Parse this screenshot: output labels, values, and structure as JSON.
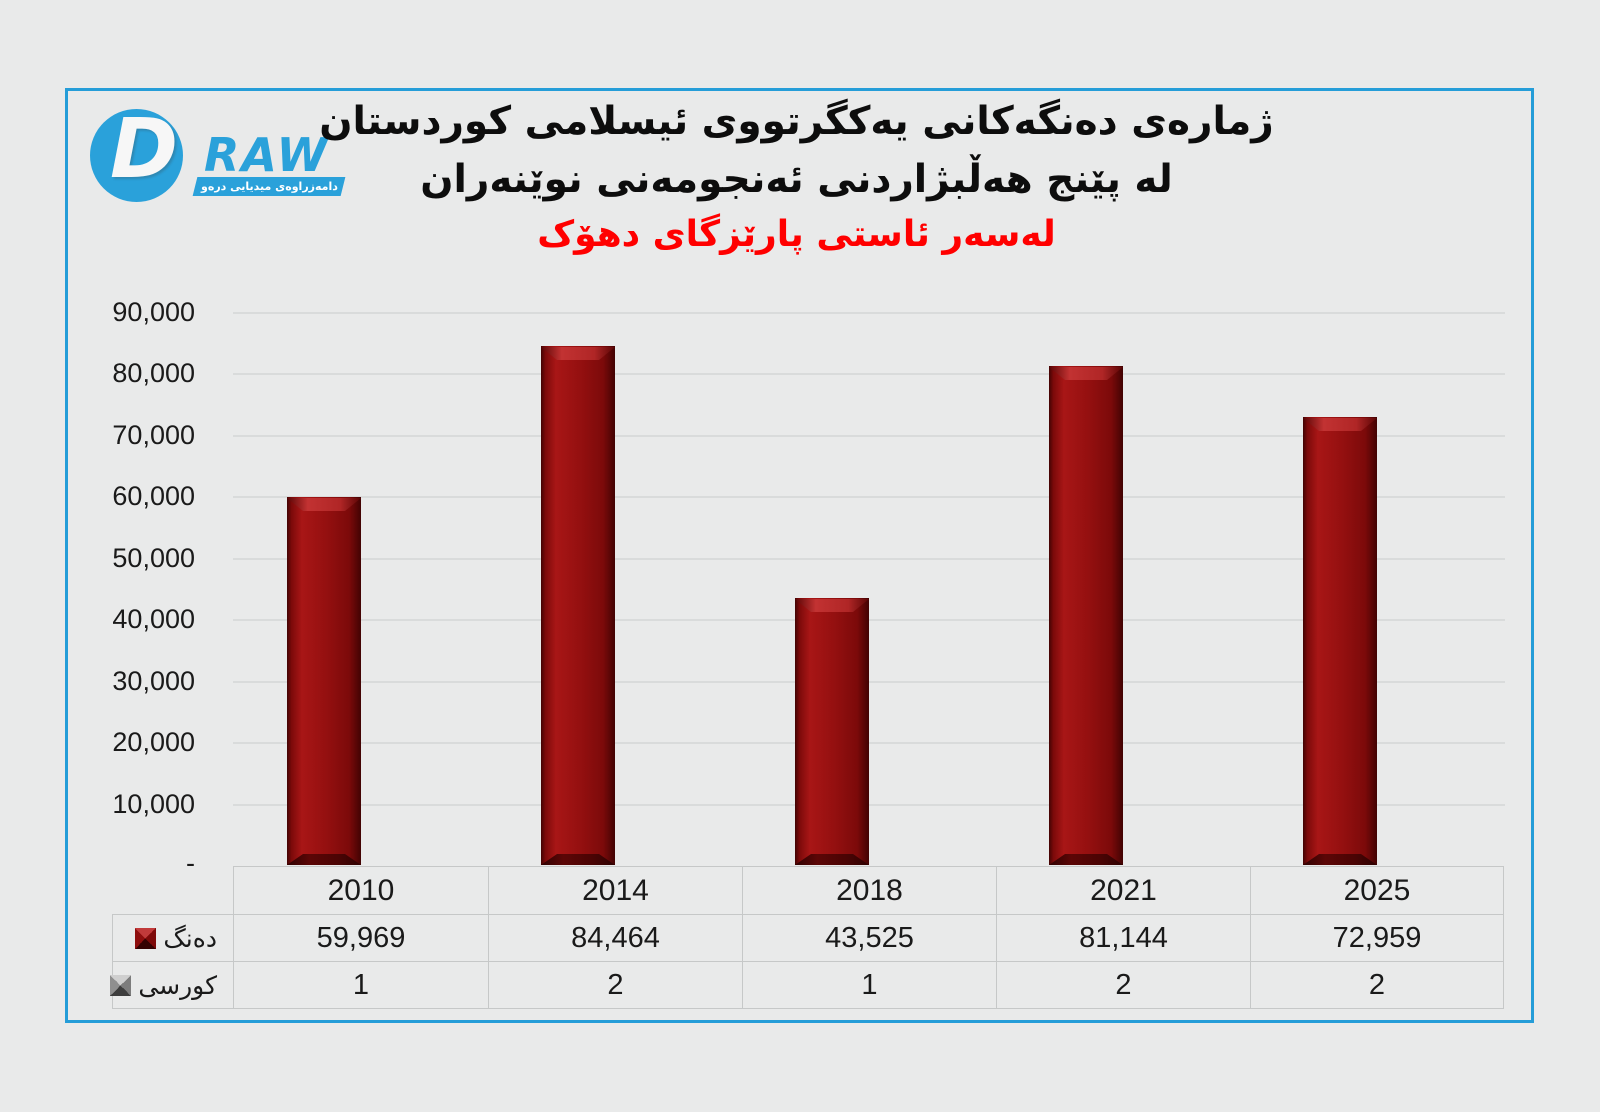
{
  "logo": {
    "brand_d": "D",
    "brand_raw": "RAW",
    "tagline": "دامەزراوەی میدیایی درەو",
    "brand_color": "#2aa1da"
  },
  "title": {
    "line1": "ژمارەی دەنگەکانی یەکگرتووی ئیسلامی کوردستان",
    "line2": "لە پێنج هەڵبژاردنی ئەنجومەنی نوێنەران",
    "line3": "لەسەر ئاستی پارێزگای دهۆک",
    "line3_color": "#ff0000"
  },
  "chart_data": {
    "type": "bar",
    "categories": [
      "2010",
      "2014",
      "2018",
      "2021",
      "2025"
    ],
    "series": [
      {
        "name": "دەنگ",
        "values": [
          59969,
          84464,
          43525,
          81144,
          72959
        ],
        "color": "#9b1010"
      },
      {
        "name": "کورسی",
        "values": [
          1,
          2,
          1,
          2,
          2
        ],
        "color": "#808080"
      }
    ],
    "title": "ژمارەی دەنگەکانی یەکگرتووی ئیسلامی کوردستان لە پێنج هەڵبژاردنی ئەنجومەنی نوێنەران لەسەر ئاستی پارێزگای دهۆک",
    "xlabel": "",
    "ylabel": "",
    "ylim": [
      0,
      90000
    ],
    "ytick_step": 10000,
    "yticklabels": [
      "90,000",
      "80,000",
      "70,000",
      "60,000",
      "50,000",
      "40,000",
      "30,000",
      "20,000",
      "10,000",
      "-"
    ],
    "grid": true,
    "legend_position": "table-row-headers"
  },
  "table": {
    "votes_display": [
      "59,969",
      "84,464",
      "43,525",
      "81,144",
      "72,959"
    ],
    "seats_display": [
      "1",
      "2",
      "1",
      "2",
      "2"
    ]
  },
  "colors": {
    "bar_fill": "#9b1010",
    "border_blue": "#259dd8",
    "background": "#e9eaea",
    "gridline": "#d9dbdb",
    "title_red": "#ff0000"
  }
}
